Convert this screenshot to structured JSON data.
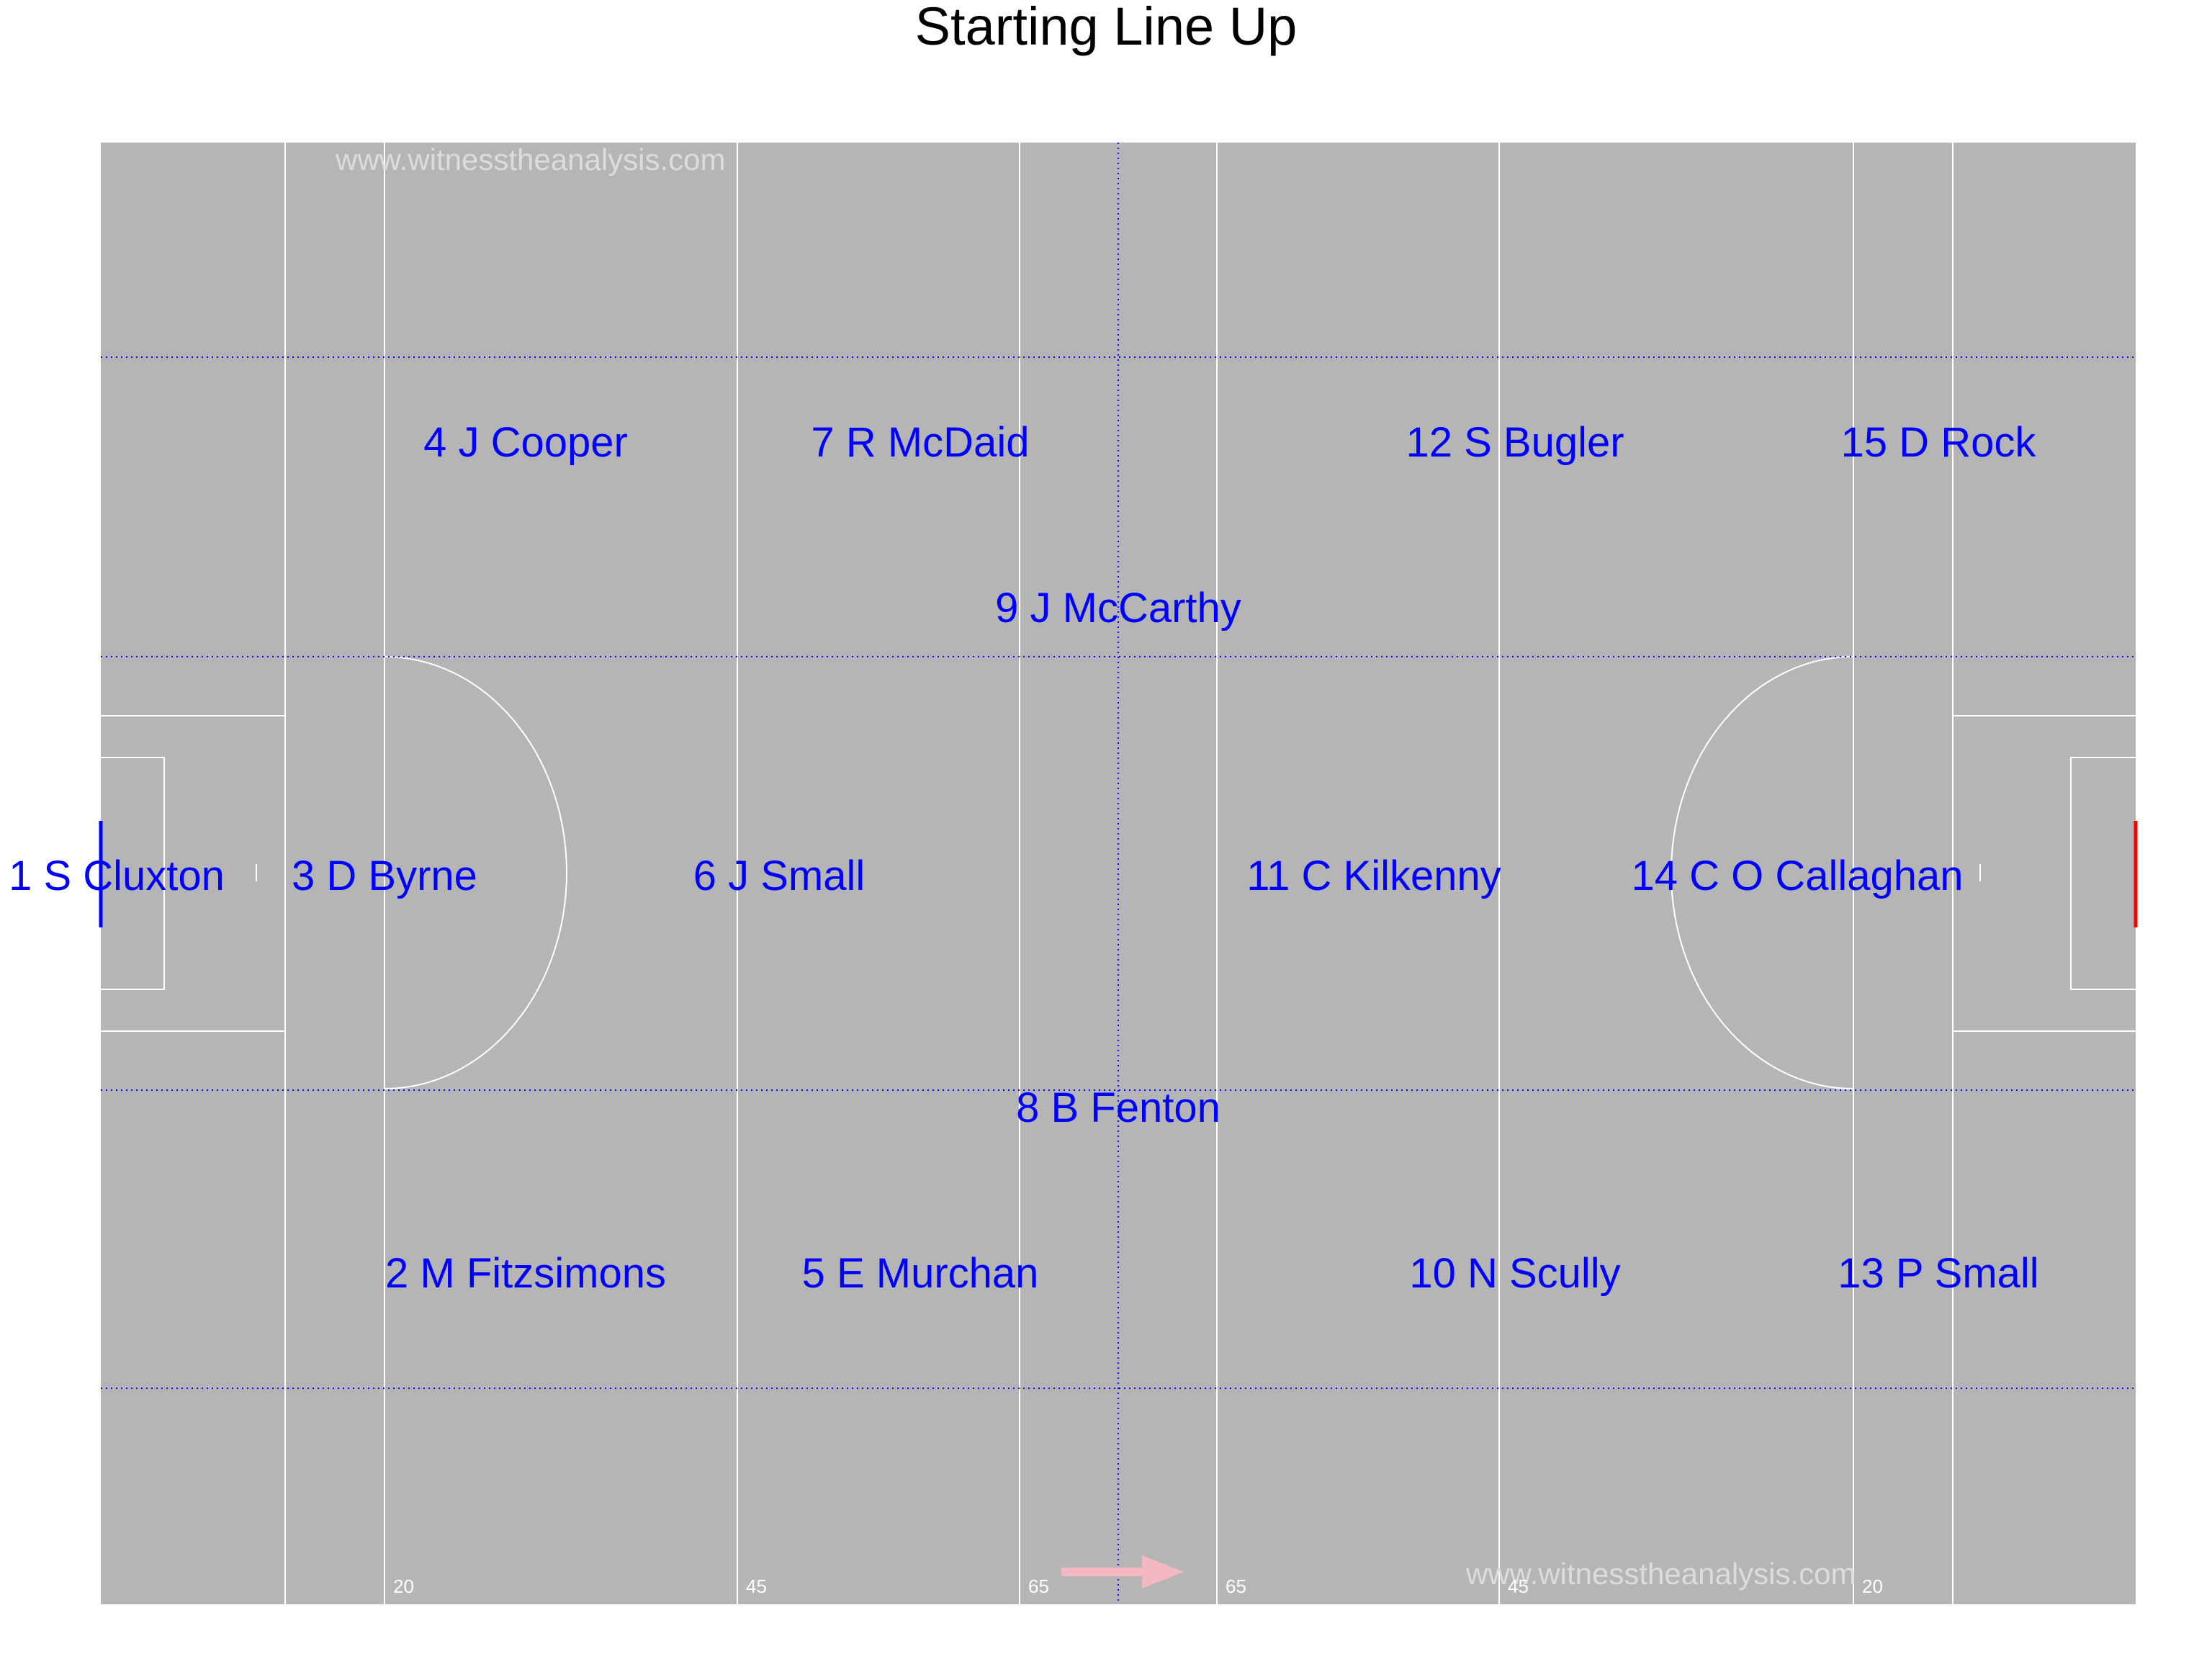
{
  "title": "Starting Line Up",
  "watermark": "www.witnesstheanalysis.com",
  "colors": {
    "pitch": "#b5b5b5",
    "lines": "#ffffff",
    "grid": "#0000ff",
    "players": "#0000ff",
    "attack_goal": "#ff0000",
    "defend_goal": "#0000ff",
    "direction_arrow": "#f4b8c2"
  },
  "direction_icon": "arrow-right-icon",
  "yard_markers": [
    "20",
    "45",
    "65",
    "65",
    "45",
    "20"
  ],
  "players": [
    {
      "label": "1 S Cluxton",
      "zone": "goalkeeper",
      "side": "centre"
    },
    {
      "label": "2 M Fitzsimons",
      "zone": "full-back",
      "side": "right"
    },
    {
      "label": "3 D Byrne",
      "zone": "full-back",
      "side": "centre"
    },
    {
      "label": "4 J Cooper",
      "zone": "full-back",
      "side": "left"
    },
    {
      "label": "5 E Murchan",
      "zone": "half-back",
      "side": "right"
    },
    {
      "label": "6 J Small",
      "zone": "half-back",
      "side": "centre"
    },
    {
      "label": "7 R McDaid",
      "zone": "half-back",
      "side": "left"
    },
    {
      "label": "8 B Fenton",
      "zone": "midfield",
      "side": "right"
    },
    {
      "label": "9 J McCarthy",
      "zone": "midfield",
      "side": "left"
    },
    {
      "label": "10 N Scully",
      "zone": "half-forward",
      "side": "right"
    },
    {
      "label": "11 C Kilkenny",
      "zone": "half-forward",
      "side": "centre"
    },
    {
      "label": "12 S Bugler",
      "zone": "half-forward",
      "side": "left"
    },
    {
      "label": "13 P Small",
      "zone": "full-forward",
      "side": "right"
    },
    {
      "label": "14 C O Callaghan",
      "zone": "full-forward",
      "side": "centre"
    },
    {
      "label": "15 D Rock",
      "zone": "full-forward",
      "side": "left"
    }
  ]
}
